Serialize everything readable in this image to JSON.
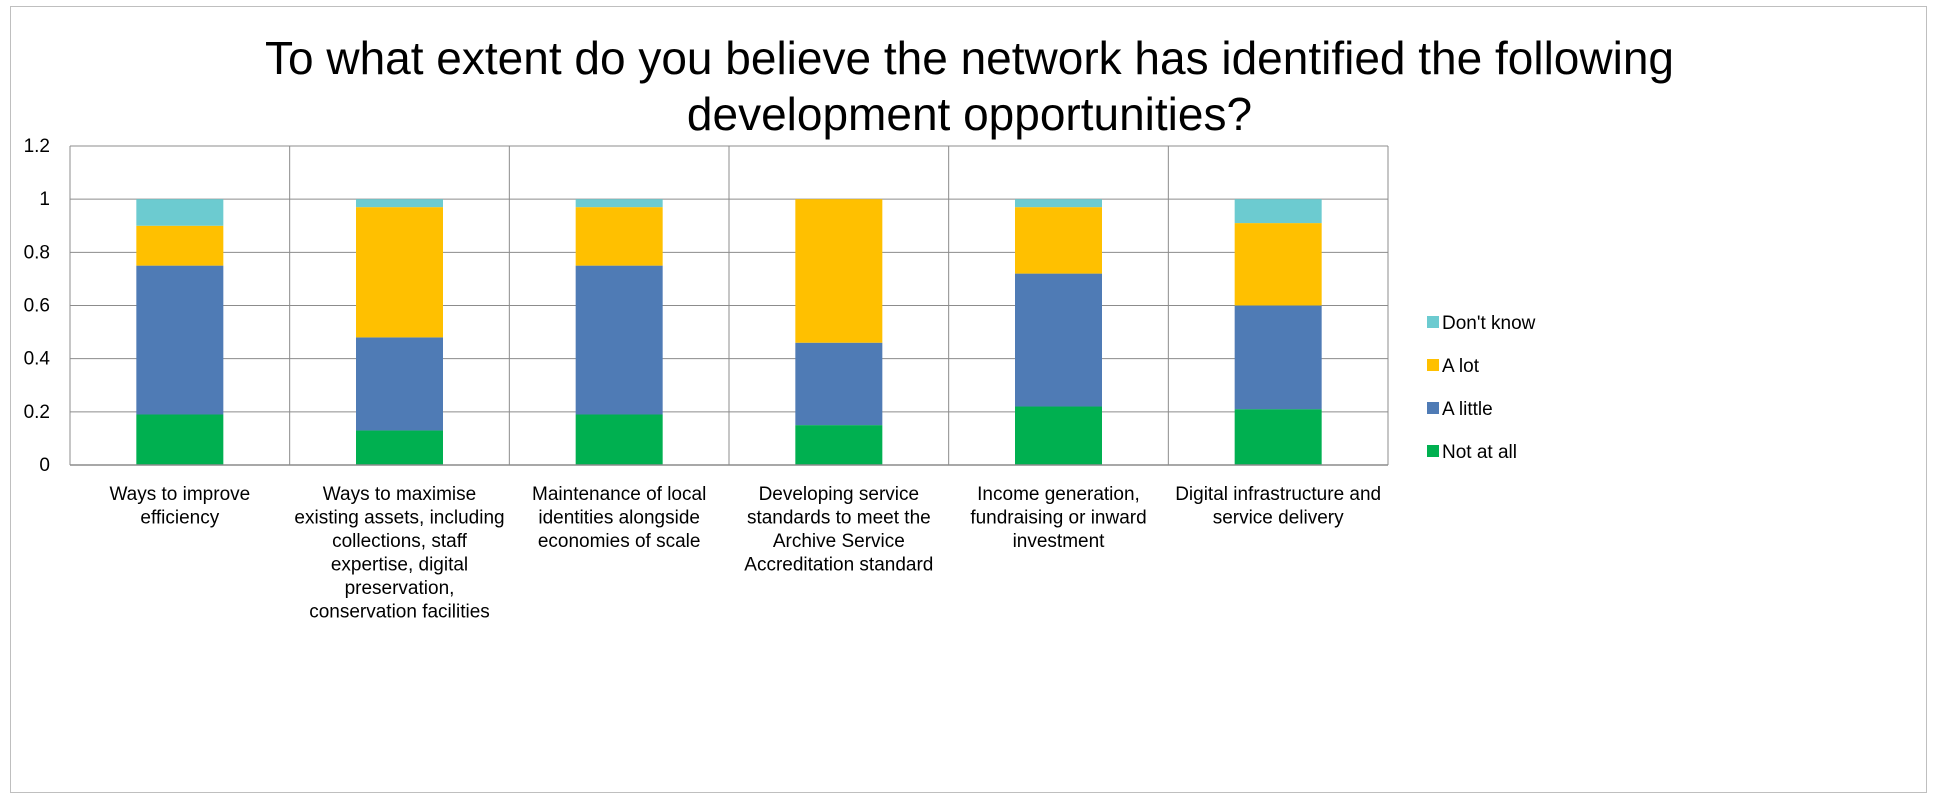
{
  "chart_data": {
    "type": "bar",
    "stacked": true,
    "title": "To what extent do you believe the network has identified the following\ndevelopment opportunities?",
    "xlabel": "",
    "ylabel": "",
    "ylim": [
      0,
      1.2
    ],
    "yticks": [
      "0",
      "0.2",
      "0.4",
      "0.6",
      "0.8",
      "1",
      "1.2"
    ],
    "grid": true,
    "legend_position": "right",
    "categories": [
      [
        "Ways to improve",
        "efficiency"
      ],
      [
        "Ways to maximise",
        "existing assets, including",
        "collections,  staff",
        "expertise, digital",
        "preservation,",
        "conservation facilities"
      ],
      [
        "Maintenance of local",
        "identities alongside",
        "economies of scale"
      ],
      [
        "Developing service",
        "standards to meet the",
        "Archive Service",
        "Accreditation standard"
      ],
      [
        "Income generation,",
        "fundraising or inward",
        "investment"
      ],
      [
        "Digital infrastructure  and",
        "service delivery"
      ]
    ],
    "series": [
      {
        "name": "Not at all",
        "color": "#00b050",
        "values": [
          0.19,
          0.13,
          0.19,
          0.15,
          0.22,
          0.21
        ]
      },
      {
        "name": "A little",
        "color": "#4f7bb5",
        "values": [
          0.56,
          0.35,
          0.56,
          0.31,
          0.5,
          0.39
        ]
      },
      {
        "name": "A lot",
        "color": "#ffc000",
        "values": [
          0.15,
          0.49,
          0.22,
          0.54,
          0.25,
          0.31
        ]
      },
      {
        "name": "Don't know",
        "color": "#6ccbd0",
        "values": [
          0.1,
          0.03,
          0.03,
          0.0,
          0.03,
          0.09
        ]
      }
    ]
  }
}
